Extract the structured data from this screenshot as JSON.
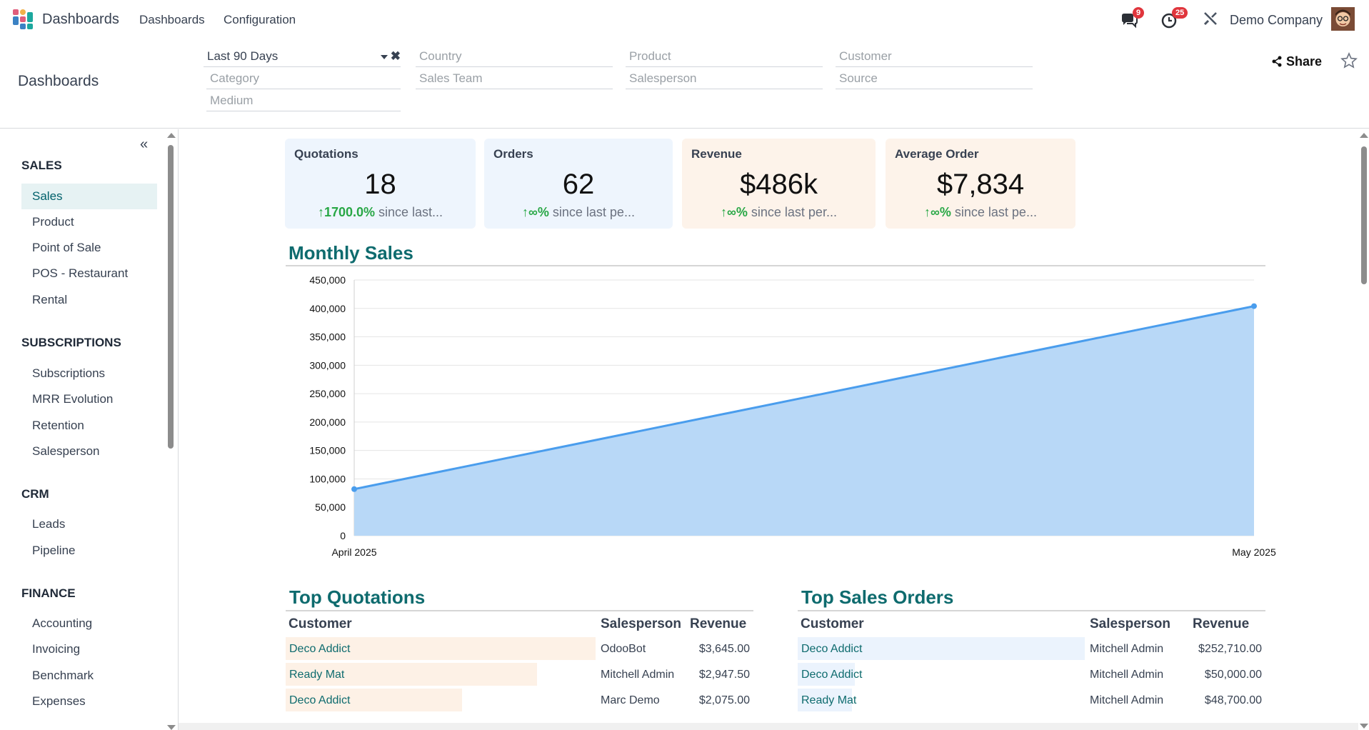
{
  "navbar": {
    "brand": "Dashboards",
    "menu": [
      "Dashboards",
      "Configuration"
    ],
    "messages_badge": "9",
    "activities_badge": "25",
    "company": "Demo Company"
  },
  "control_panel": {
    "title": "Dashboards",
    "filters": {
      "period": "Last 90 Days",
      "country": "Country",
      "product": "Product",
      "customer": "Customer",
      "category": "Category",
      "sales_team": "Sales Team",
      "salesperson": "Salesperson",
      "source": "Source",
      "medium": "Medium"
    },
    "share_label": "Share"
  },
  "sidebar": {
    "collapse_label": "«",
    "sections": [
      {
        "title": "SALES",
        "items": [
          "Sales",
          "Product",
          "Point of Sale",
          "POS - Restaurant",
          "Rental"
        ]
      },
      {
        "title": "SUBSCRIPTIONS",
        "items": [
          "Subscriptions",
          "MRR Evolution",
          "Retention",
          "Salesperson"
        ]
      },
      {
        "title": "CRM",
        "items": [
          "Leads",
          "Pipeline"
        ]
      },
      {
        "title": "FINANCE",
        "items": [
          "Accounting",
          "Invoicing",
          "Benchmark",
          "Expenses"
        ]
      }
    ],
    "active_item": "Sales"
  },
  "kpis": [
    {
      "name": "Quotations",
      "value": "18",
      "trend_pct": "1700.0%",
      "trend_text": "since last..."
    },
    {
      "name": "Orders",
      "value": "62",
      "trend_pct": "∞%",
      "trend_text": "since last pe..."
    },
    {
      "name": "Revenue",
      "value": "$486k",
      "trend_pct": "∞%",
      "trend_text": "since last per..."
    },
    {
      "name": "Average Order",
      "value": "$7,834",
      "trend_pct": "∞%",
      "trend_text": "since last pe..."
    }
  ],
  "monthly_sales": {
    "title": "Monthly Sales"
  },
  "chart_data": {
    "type": "area",
    "categories": [
      "April 2025",
      "May 2025"
    ],
    "values": [
      82000,
      404000
    ],
    "ylim": [
      0,
      450000
    ],
    "yticks": [
      "0",
      "50,000",
      "100,000",
      "150,000",
      "200,000",
      "250,000",
      "300,000",
      "350,000",
      "400,000",
      "450,000"
    ],
    "grid": true,
    "fill_color": "#b8d8f7",
    "line_color": "#4a9ded"
  },
  "top_quotations": {
    "title": "Top Quotations",
    "headers": [
      "Customer",
      "Salesperson",
      "Revenue"
    ],
    "rows": [
      {
        "customer": "Deco Addict",
        "salesperson": "OdooBot",
        "revenue": "$3,645.00",
        "share": 1.0
      },
      {
        "customer": "Ready Mat",
        "salesperson": "Mitchell Admin",
        "revenue": "$2,947.50",
        "share": 0.81
      },
      {
        "customer": "Deco Addict",
        "salesperson": "Marc Demo",
        "revenue": "$2,075.00",
        "share": 0.57
      }
    ]
  },
  "top_sales_orders": {
    "title": "Top Sales Orders",
    "headers": [
      "Customer",
      "Salesperson",
      "Revenue"
    ],
    "rows": [
      {
        "customer": "Deco Addict",
        "salesperson": "Mitchell Admin",
        "revenue": "$252,710.00",
        "share": 1.0
      },
      {
        "customer": "Deco Addict",
        "salesperson": "Mitchell Admin",
        "revenue": "$50,000.00",
        "share": 0.2
      },
      {
        "customer": "Ready Mat",
        "salesperson": "Mitchell Admin",
        "revenue": "$48,700.00",
        "share": 0.19
      }
    ]
  },
  "colors": {
    "accent": "#0e6b6e",
    "quotation_bar": "#fdf1e6",
    "order_bar": "#ebf3fd",
    "positive": "#28a745"
  }
}
